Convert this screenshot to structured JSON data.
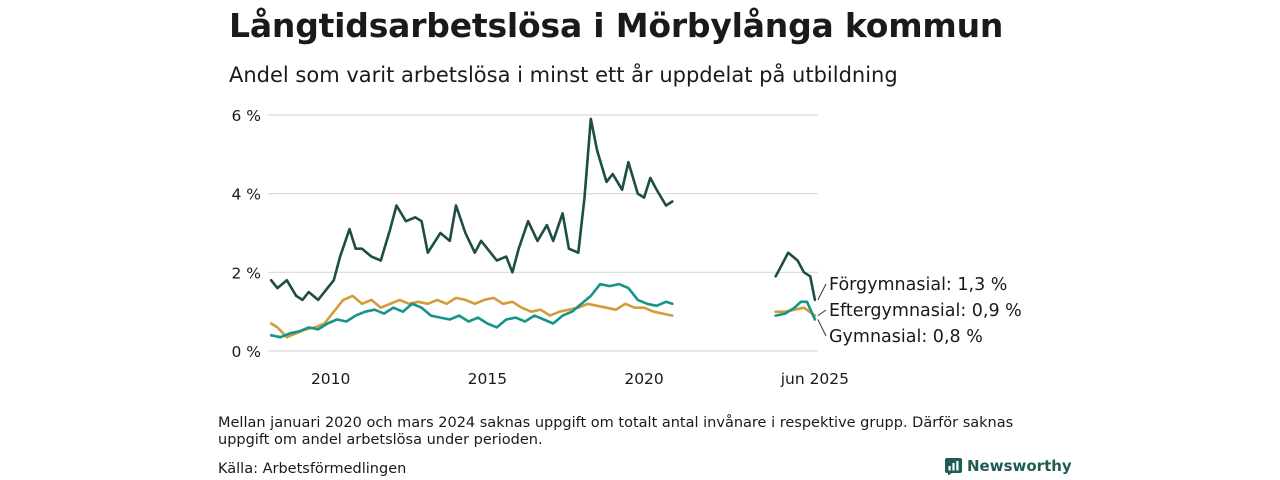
{
  "title": "Långtidsarbetslösa i Mörbylånga kommun",
  "subtitle": "Andel som varit arbetslösa i minst ett år uppdelat på utbildning",
  "note": "Mellan januari 2020 och mars 2024 saknas uppgift om totalt antal invånare i respektive grupp. Därför saknas uppgift om andel arbetslösa under perioden.",
  "source": "Källa: Arbetsförmedlingen",
  "brand": "Newsworthy",
  "colors": {
    "forgymnasial": "#1d4d45",
    "eftergymnasial": "#d39b3a",
    "gymnasial": "#15958a",
    "grid": "#d9d9d9",
    "brand": "#1f5c52"
  },
  "chart_data": {
    "type": "line",
    "y_ticks": [
      "0 %",
      "2 %",
      "4 %",
      "6 %"
    ],
    "x_ticks": [
      "2010",
      "2015",
      "2020",
      "jun 2025"
    ],
    "ylim": [
      0,
      6
    ],
    "end_labels": [
      "Förgymnasial: 1,3 %",
      "Eftergymnasial: 0,9 %",
      "Gymnasial: 0,8 %"
    ],
    "series": [
      {
        "name": "Förgymnasial",
        "segments": [
          {
            "x": [
              2008.1,
              2008.3,
              2008.6,
              2008.9,
              2009.1,
              2009.3,
              2009.6,
              2009.9,
              2010.1,
              2010.3,
              2010.6,
              2010.8,
              2011.0,
              2011.3,
              2011.6,
              2011.9,
              2012.1,
              2012.4,
              2012.7,
              2012.9,
              2013.1,
              2013.5,
              2013.8,
              2014.0,
              2014.3,
              2014.6,
              2014.8,
              2015.0,
              2015.3,
              2015.6,
              2015.8,
              2016.0,
              2016.3,
              2016.6,
              2016.9,
              2017.1,
              2017.4,
              2017.6,
              2017.9,
              2018.1,
              2018.3,
              2018.5,
              2018.8,
              2019.0,
              2019.3,
              2019.5,
              2019.8,
              2020.0,
              2020.2,
              2020.4,
              2020.7,
              2020.9
            ],
            "y": [
              1.8,
              1.6,
              1.8,
              1.4,
              1.3,
              1.5,
              1.3,
              1.6,
              1.8,
              2.4,
              3.1,
              2.6,
              2.6,
              2.4,
              2.3,
              3.1,
              3.7,
              3.3,
              3.4,
              3.3,
              2.5,
              3.0,
              2.8,
              3.7,
              3.0,
              2.5,
              2.8,
              2.6,
              2.3,
              2.4,
              2.0,
              2.6,
              3.3,
              2.8,
              3.2,
              2.8,
              3.5,
              2.6,
              2.5,
              3.9,
              5.9,
              5.1,
              4.3,
              4.5,
              4.1,
              4.8,
              4.0,
              3.9,
              4.4,
              4.1,
              3.7,
              3.8
            ]
          },
          {
            "x": [
              2024.2,
              2024.4,
              2024.6,
              2024.9,
              2025.1,
              2025.3,
              2025.45
            ],
            "y": [
              1.9,
              2.2,
              2.5,
              2.3,
              2.0,
              1.9,
              1.3
            ]
          }
        ]
      },
      {
        "name": "Eftergymnasial",
        "segments": [
          {
            "x": [
              2008.1,
              2008.3,
              2008.6,
              2008.9,
              2009.2,
              2009.5,
              2009.8,
              2010.1,
              2010.4,
              2010.7,
              2011.0,
              2011.3,
              2011.6,
              2011.9,
              2012.2,
              2012.5,
              2012.8,
              2013.1,
              2013.4,
              2013.7,
              2014.0,
              2014.3,
              2014.6,
              2014.9,
              2015.2,
              2015.5,
              2015.8,
              2016.1,
              2016.4,
              2016.7,
              2017.0,
              2017.3,
              2017.6,
              2017.9,
              2018.2,
              2018.5,
              2018.8,
              2019.1,
              2019.4,
              2019.7,
              2020.0,
              2020.3,
              2020.6,
              2020.9
            ],
            "y": [
              0.7,
              0.6,
              0.35,
              0.45,
              0.55,
              0.6,
              0.7,
              1.0,
              1.3,
              1.4,
              1.2,
              1.3,
              1.1,
              1.2,
              1.3,
              1.2,
              1.25,
              1.2,
              1.3,
              1.2,
              1.35,
              1.3,
              1.2,
              1.3,
              1.35,
              1.2,
              1.25,
              1.1,
              1.0,
              1.05,
              0.9,
              1.0,
              1.05,
              1.1,
              1.2,
              1.15,
              1.1,
              1.05,
              1.2,
              1.1,
              1.1,
              1.0,
              0.95,
              0.9
            ]
          },
          {
            "x": [
              2024.2,
              2024.5,
              2024.8,
              2025.1,
              2025.45
            ],
            "y": [
              1.0,
              1.0,
              1.05,
              1.1,
              0.9
            ]
          }
        ]
      },
      {
        "name": "Gymnasial",
        "segments": [
          {
            "x": [
              2008.1,
              2008.4,
              2008.7,
              2009.0,
              2009.3,
              2009.6,
              2009.9,
              2010.2,
              2010.5,
              2010.8,
              2011.1,
              2011.4,
              2011.7,
              2012.0,
              2012.3,
              2012.6,
              2012.9,
              2013.2,
              2013.5,
              2013.8,
              2014.1,
              2014.4,
              2014.7,
              2015.0,
              2015.3,
              2015.6,
              2015.9,
              2016.2,
              2016.5,
              2016.8,
              2017.1,
              2017.4,
              2017.7,
              2018.0,
              2018.3,
              2018.6,
              2018.9,
              2019.2,
              2019.5,
              2019.8,
              2020.1,
              2020.4,
              2020.7,
              2020.9
            ],
            "y": [
              0.4,
              0.35,
              0.45,
              0.5,
              0.6,
              0.55,
              0.7,
              0.8,
              0.75,
              0.9,
              1.0,
              1.05,
              0.95,
              1.1,
              1.0,
              1.2,
              1.1,
              0.9,
              0.85,
              0.8,
              0.9,
              0.75,
              0.85,
              0.7,
              0.6,
              0.8,
              0.85,
              0.75,
              0.9,
              0.8,
              0.7,
              0.9,
              1.0,
              1.2,
              1.4,
              1.7,
              1.65,
              1.7,
              1.6,
              1.3,
              1.2,
              1.15,
              1.25,
              1.2
            ]
          },
          {
            "x": [
              2024.2,
              2024.5,
              2024.8,
              2025.0,
              2025.2,
              2025.45
            ],
            "y": [
              0.9,
              0.95,
              1.1,
              1.25,
              1.25,
              0.8
            ]
          }
        ]
      }
    ]
  }
}
